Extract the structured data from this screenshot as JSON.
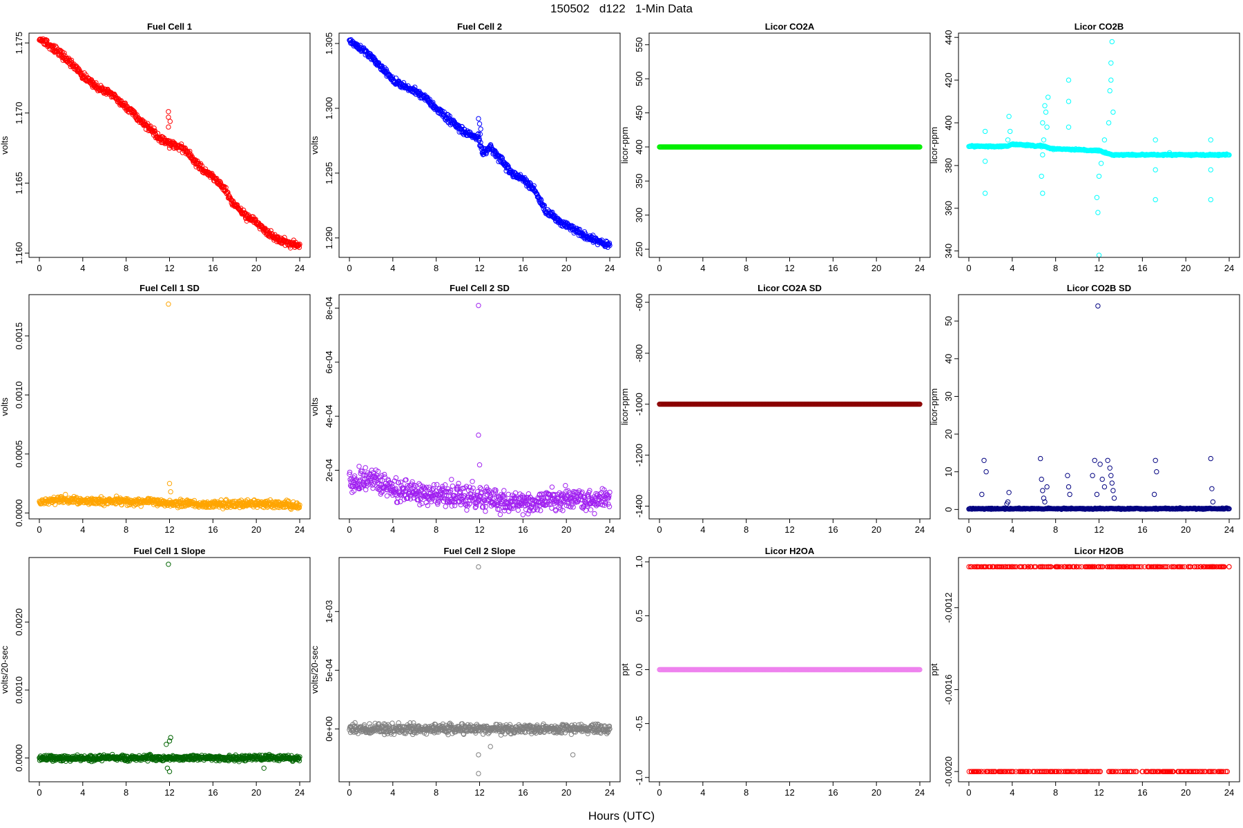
{
  "figure": {
    "title": "150502   d122   1-Min Data",
    "xlabel": "Hours (UTC)"
  },
  "chart_data": [
    {
      "id": "fc1",
      "type": "scatter",
      "title": "Fuel Cell 1",
      "ylabel": "volts",
      "color": "#ff0000",
      "xlim": [
        0,
        24
      ],
      "ylim": [
        1.1597,
        1.1757
      ],
      "xticks": [
        0,
        4,
        8,
        12,
        16,
        20,
        24
      ],
      "yticks": [
        1.16,
        1.165,
        1.17,
        1.175
      ],
      "ytick_labels": [
        "1.160",
        "1.165",
        "1.170",
        "1.175"
      ],
      "trend": [
        [
          0,
          1.1753
        ],
        [
          1,
          1.1748
        ],
        [
          2,
          1.1742
        ],
        [
          3,
          1.1735
        ],
        [
          4,
          1.1727
        ],
        [
          5,
          1.172
        ],
        [
          6,
          1.1716
        ],
        [
          7,
          1.1711
        ],
        [
          8,
          1.1704
        ],
        [
          9,
          1.1697
        ],
        [
          10,
          1.169
        ],
        [
          11,
          1.1683
        ],
        [
          11.9,
          1.1679
        ],
        [
          12.4,
          1.1677
        ],
        [
          13,
          1.1676
        ],
        [
          14,
          1.1668
        ],
        [
          15,
          1.166
        ],
        [
          16,
          1.1655
        ],
        [
          17,
          1.1646
        ],
        [
          18,
          1.1634
        ],
        [
          19,
          1.1627
        ],
        [
          20,
          1.1622
        ],
        [
          21,
          1.1615
        ],
        [
          22,
          1.161
        ],
        [
          23,
          1.1607
        ],
        [
          24,
          1.1605
        ]
      ],
      "noise": 0.00025,
      "density": 650,
      "outliers": [
        [
          11.9,
          1.1701
        ],
        [
          11.9,
          1.1697
        ],
        [
          12.05,
          1.1694
        ],
        [
          11.9,
          1.169
        ],
        [
          12,
          1.1675
        ]
      ]
    },
    {
      "id": "fc2",
      "type": "scatter",
      "title": "Fuel Cell 2",
      "ylabel": "volts",
      "color": "#0000ff",
      "xlim": [
        0,
        24
      ],
      "ylim": [
        1.2885,
        1.3058
      ],
      "xticks": [
        0,
        4,
        8,
        12,
        16,
        20,
        24
      ],
      "yticks": [
        1.29,
        1.295,
        1.3,
        1.305
      ],
      "ytick_labels": [
        "1.290",
        "1.295",
        "1.300",
        "1.305"
      ],
      "trend": [
        [
          0,
          1.3052
        ],
        [
          1,
          1.3047
        ],
        [
          2,
          1.304
        ],
        [
          3,
          1.3031
        ],
        [
          4,
          1.3022
        ],
        [
          5,
          1.3017
        ],
        [
          6,
          1.3014
        ],
        [
          7,
          1.3008
        ],
        [
          8,
          1.3
        ],
        [
          9,
          1.2993
        ],
        [
          10,
          1.2986
        ],
        [
          11,
          1.298
        ],
        [
          11.9,
          1.2978
        ],
        [
          12.3,
          1.2965
        ],
        [
          13,
          1.297
        ],
        [
          14,
          1.296
        ],
        [
          15,
          1.295
        ],
        [
          16,
          1.2945
        ],
        [
          17,
          1.2938
        ],
        [
          18,
          1.2922
        ],
        [
          19,
          1.2915
        ],
        [
          20,
          1.291
        ],
        [
          21,
          1.2905
        ],
        [
          22,
          1.29
        ],
        [
          23,
          1.2897
        ],
        [
          24,
          1.2895
        ]
      ],
      "noise": 0.00025,
      "density": 650,
      "outliers": [
        [
          11.9,
          1.2992
        ],
        [
          12,
          1.2988
        ],
        [
          12.1,
          1.2984
        ],
        [
          12.05,
          1.298
        ],
        [
          11.95,
          1.2975
        ]
      ]
    },
    {
      "id": "co2a",
      "type": "scatter",
      "title": "Licor CO2A",
      "ylabel": "licor-ppm",
      "color": "#00ee00",
      "xlim": [
        0,
        24
      ],
      "ylim": [
        238,
        567
      ],
      "xticks": [
        0,
        4,
        8,
        12,
        16,
        20,
        24
      ],
      "yticks": [
        250,
        300,
        350,
        400,
        450,
        500,
        550
      ],
      "ytick_labels": [
        "250",
        "300",
        "350",
        "400",
        "450",
        "500",
        "550"
      ],
      "trend": [
        [
          0,
          400
        ],
        [
          24,
          400
        ]
      ],
      "noise": 0,
      "density": 420,
      "outliers": []
    },
    {
      "id": "co2b",
      "type": "scatter",
      "title": "Licor CO2B",
      "ylabel": "licor-ppm",
      "color": "#00ffff",
      "xlim": [
        0,
        24
      ],
      "ylim": [
        337,
        442
      ],
      "xticks": [
        0,
        4,
        8,
        12,
        16,
        20,
        24
      ],
      "yticks": [
        340,
        360,
        380,
        400,
        420,
        440
      ],
      "ytick_labels": [
        "340",
        "360",
        "380",
        "400",
        "420",
        "440"
      ],
      "trend": [
        [
          0,
          389
        ],
        [
          3.5,
          389
        ],
        [
          4,
          390
        ],
        [
          7,
          389
        ],
        [
          7.5,
          388
        ],
        [
          12,
          387
        ],
        [
          12.5,
          386
        ],
        [
          13.2,
          385
        ],
        [
          24,
          385
        ]
      ],
      "noise": 0.3,
      "density": 420,
      "outliers": [
        [
          1.5,
          396
        ],
        [
          1.5,
          382
        ],
        [
          1.5,
          367
        ],
        [
          3.7,
          403
        ],
        [
          3.8,
          396
        ],
        [
          3.6,
          392
        ],
        [
          6.8,
          400
        ],
        [
          6.9,
          392
        ],
        [
          6.8,
          385
        ],
        [
          6.7,
          375
        ],
        [
          6.8,
          367
        ],
        [
          7,
          408
        ],
        [
          7.1,
          405
        ],
        [
          7.2,
          398
        ],
        [
          7.3,
          412
        ],
        [
          9.2,
          420
        ],
        [
          9.2,
          410
        ],
        [
          9.2,
          398
        ],
        [
          11.8,
          365
        ],
        [
          11.9,
          358
        ],
        [
          12,
          338
        ],
        [
          12,
          375
        ],
        [
          12.2,
          381
        ],
        [
          12.5,
          392
        ],
        [
          12.9,
          400
        ],
        [
          13,
          415
        ],
        [
          13.1,
          428
        ],
        [
          13.2,
          438
        ],
        [
          13.1,
          420
        ],
        [
          13.3,
          405
        ],
        [
          17.2,
          392
        ],
        [
          17.2,
          378
        ],
        [
          17.2,
          364
        ],
        [
          18.5,
          386
        ],
        [
          22.3,
          392
        ],
        [
          22.3,
          378
        ],
        [
          22.3,
          364
        ]
      ]
    },
    {
      "id": "fc1sd",
      "type": "scatter",
      "title": "Fuel Cell 1 SD",
      "ylabel": "volts",
      "color": "#ffa500",
      "xlim": [
        0,
        24
      ],
      "ylim": [
        -5e-05,
        0.00185
      ],
      "xticks": [
        0,
        4,
        8,
        12,
        16,
        20,
        24
      ],
      "yticks": [
        0,
        0.0005,
        0.001,
        0.0015
      ],
      "ytick_labels": [
        "0.0000",
        "0.0005",
        "0.0010",
        "0.0015"
      ],
      "trend": [
        [
          0,
          9e-05
        ],
        [
          2,
          0.00012
        ],
        [
          4,
          0.0001
        ],
        [
          8,
          0.0001
        ],
        [
          12,
          9e-05
        ],
        [
          16,
          7e-05
        ],
        [
          20,
          8e-05
        ],
        [
          24,
          6e-05
        ]
      ],
      "noise": 3e-05,
      "density": 700,
      "outliers": [
        [
          11.9,
          0.00177
        ],
        [
          12,
          0.00025
        ],
        [
          12.1,
          0.00018
        ]
      ]
    },
    {
      "id": "fc2sd",
      "type": "scatter",
      "title": "Fuel Cell 2 SD",
      "ylabel": "volts",
      "color": "#a020f0",
      "xlim": [
        0,
        24
      ],
      "ylim": [
        2e-05,
        0.00085
      ],
      "xticks": [
        0,
        4,
        8,
        12,
        16,
        20,
        24
      ],
      "yticks": [
        0.0002,
        0.0004,
        0.0006,
        0.0008
      ],
      "ytick_labels": [
        "2e-04",
        "4e-04",
        "6e-04",
        "8e-04"
      ],
      "trend": [
        [
          0,
          0.00015
        ],
        [
          2,
          0.00017
        ],
        [
          4,
          0.00013
        ],
        [
          8,
          0.00011
        ],
        [
          12,
          0.0001
        ],
        [
          16,
          8e-05
        ],
        [
          20,
          9e-05
        ],
        [
          24,
          9e-05
        ]
      ],
      "noise": 4e-05,
      "density": 700,
      "outliers": [
        [
          11.9,
          0.00081
        ],
        [
          11.9,
          0.00033
        ],
        [
          12,
          0.00022
        ]
      ]
    },
    {
      "id": "co2asd",
      "type": "scatter",
      "title": "Licor CO2A SD",
      "ylabel": "licor-ppm",
      "color": "#8b0000",
      "xlim": [
        0,
        24
      ],
      "ylim": [
        -1450,
        -570
      ],
      "xticks": [
        0,
        4,
        8,
        12,
        16,
        20,
        24
      ],
      "yticks": [
        -1400,
        -1200,
        -1000,
        -800,
        -600
      ],
      "ytick_labels": [
        "-1400",
        "-1200",
        "-1000",
        "-800",
        "-600"
      ],
      "trend": [
        [
          0,
          -1000
        ],
        [
          24,
          -1000
        ]
      ],
      "noise": 0,
      "density": 420,
      "outliers": []
    },
    {
      "id": "co2bsd",
      "type": "scatter",
      "title": "Licor CO2B SD",
      "ylabel": "licor-ppm",
      "color": "#000080",
      "xlim": [
        0,
        24
      ],
      "ylim": [
        -2.5,
        57
      ],
      "xticks": [
        0,
        4,
        8,
        12,
        16,
        20,
        24
      ],
      "yticks": [
        0,
        10,
        20,
        30,
        40,
        50
      ],
      "ytick_labels": [
        "0",
        "10",
        "20",
        "30",
        "40",
        "50"
      ],
      "trend": [
        [
          0,
          0.2
        ],
        [
          24,
          0.2
        ]
      ],
      "noise": 0.15,
      "density": 420,
      "outliers": [
        [
          1.4,
          13
        ],
        [
          1.6,
          10
        ],
        [
          1.2,
          4
        ],
        [
          3.5,
          1.5
        ],
        [
          3.7,
          4.5
        ],
        [
          3.6,
          2
        ],
        [
          6.6,
          13.5
        ],
        [
          6.7,
          8
        ],
        [
          6.8,
          5
        ],
        [
          6.9,
          3
        ],
        [
          7,
          2
        ],
        [
          7.2,
          6
        ],
        [
          9.1,
          9
        ],
        [
          9.2,
          6
        ],
        [
          9.3,
          4
        ],
        [
          11.4,
          9
        ],
        [
          11.6,
          13
        ],
        [
          11.9,
          54
        ],
        [
          11.8,
          4
        ],
        [
          12.1,
          12
        ],
        [
          12.3,
          8
        ],
        [
          12.5,
          6
        ],
        [
          12.8,
          13
        ],
        [
          13,
          11
        ],
        [
          13.1,
          9
        ],
        [
          13.2,
          7
        ],
        [
          13.3,
          5
        ],
        [
          13.4,
          3
        ],
        [
          17.2,
          13
        ],
        [
          17.3,
          10
        ],
        [
          17.1,
          4
        ],
        [
          22.3,
          13.5
        ],
        [
          22.4,
          5.5
        ],
        [
          22.5,
          2
        ]
      ]
    },
    {
      "id": "fc1slope",
      "type": "scatter",
      "title": "Fuel Cell 1 Slope",
      "ylabel": "volts/20-sec",
      "color": "#006400",
      "xlim": [
        0,
        24
      ],
      "ylim": [
        -0.00035,
        0.00295
      ],
      "xticks": [
        0,
        4,
        8,
        12,
        16,
        20,
        24
      ],
      "yticks": [
        0,
        0.001,
        0.002
      ],
      "ytick_labels": [
        "0.0000",
        "0.0010",
        "0.0020"
      ],
      "trend": [
        [
          0,
          0
        ],
        [
          24,
          0
        ]
      ],
      "noise": 4e-05,
      "density": 700,
      "outliers": [
        [
          11.9,
          0.00285
        ],
        [
          11.7,
          0.0002
        ],
        [
          12,
          0.00025
        ],
        [
          12.1,
          0.0003
        ],
        [
          12,
          -0.0002
        ],
        [
          11.8,
          -0.00015
        ],
        [
          20.7,
          -0.00015
        ]
      ]
    },
    {
      "id": "fc2slope",
      "type": "scatter",
      "title": "Fuel Cell 2 Slope",
      "ylabel": "volts/20-sec",
      "color": "#808080",
      "xlim": [
        0,
        24
      ],
      "ylim": [
        -0.00045,
        0.00146
      ],
      "xticks": [
        0,
        4,
        8,
        12,
        16,
        20,
        24
      ],
      "yticks": [
        0,
        0.0005,
        0.001
      ],
      "ytick_labels": [
        "0e+00",
        "5e-04",
        "1e-03"
      ],
      "trend": [
        [
          0,
          0
        ],
        [
          24,
          0
        ]
      ],
      "noise": 4e-05,
      "density": 700,
      "outliers": [
        [
          11.9,
          0.00138
        ],
        [
          11.9,
          -0.00038
        ],
        [
          11.9,
          -0.00022
        ],
        [
          13,
          -0.00015
        ],
        [
          20.6,
          -0.00022
        ]
      ]
    },
    {
      "id": "h2oa",
      "type": "scatter",
      "title": "Licor H2OA",
      "ylabel": "ppt",
      "color": "#ee82ee",
      "xlim": [
        0,
        24
      ],
      "ylim": [
        -1.04,
        1.04
      ],
      "xticks": [
        0,
        4,
        8,
        12,
        16,
        20,
        24
      ],
      "yticks": [
        -1.0,
        -0.5,
        0,
        0.5,
        1.0
      ],
      "ytick_labels": [
        "-1.0",
        "-0.5",
        "0.0",
        "0.5",
        "1.0"
      ],
      "trend": [
        [
          0,
          0
        ],
        [
          24,
          0
        ]
      ],
      "noise": 0,
      "density": 420,
      "outliers": []
    },
    {
      "id": "h2ob",
      "type": "scatter",
      "title": "Licor H2OB",
      "ylabel": "ppt",
      "color": "#ff0000",
      "xlim": [
        0,
        24
      ],
      "ylim": [
        -0.00205,
        -0.000955
      ],
      "xticks": [
        0,
        4,
        8,
        12,
        16,
        20,
        24
      ],
      "yticks": [
        -0.002,
        -0.0016,
        -0.0012
      ],
      "ytick_labels": [
        "-0.0020",
        "-0.0016",
        "-0.0012"
      ],
      "levels": [
        -0.001,
        -0.002
      ],
      "density": 260,
      "outliers": []
    }
  ]
}
